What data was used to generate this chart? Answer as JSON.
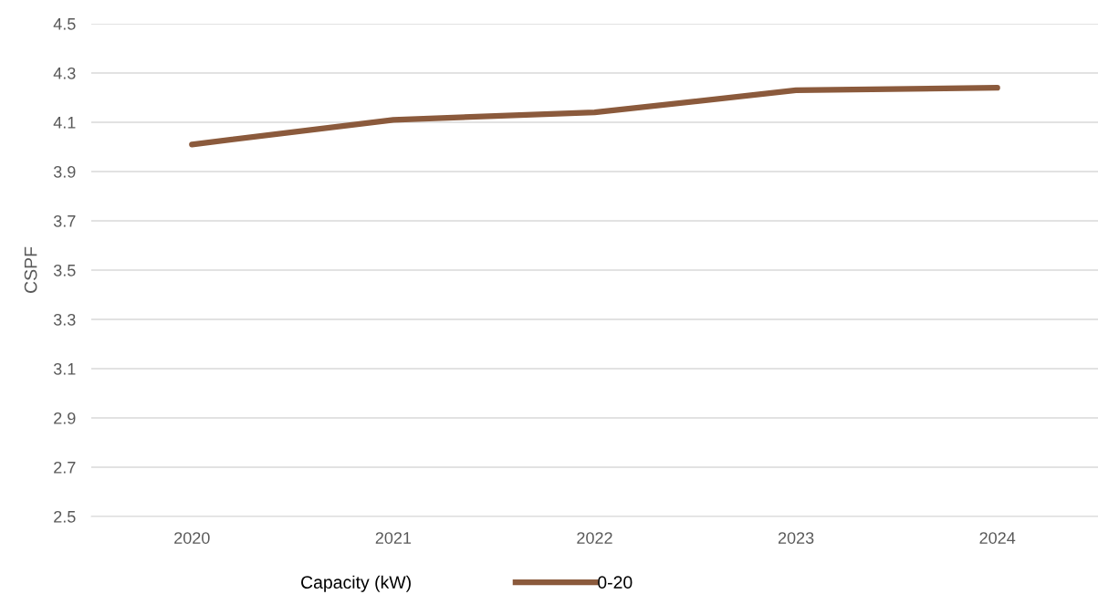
{
  "chart_data": {
    "type": "line",
    "ylabel": "CSPF",
    "legend_title": "Capacity (kW)",
    "categories": [
      "2020",
      "2021",
      "2022",
      "2023",
      "2024"
    ],
    "series": [
      {
        "name": "0-20",
        "color": "#8b5a3c",
        "values": [
          4.01,
          4.11,
          4.14,
          4.23,
          4.24
        ]
      }
    ],
    "ylim": [
      2.5,
      4.5
    ],
    "yticks": [
      2.5,
      2.7,
      2.9,
      3.1,
      3.3,
      3.5,
      3.7,
      3.9,
      4.1,
      4.3,
      4.5
    ],
    "grid": "y",
    "legend": "bottom",
    "marker": "none",
    "line_style": "solid"
  }
}
